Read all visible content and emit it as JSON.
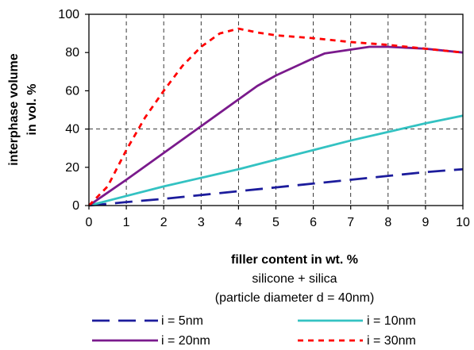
{
  "chart_data": {
    "type": "line",
    "xlabel": "filler content in wt. %",
    "ylabel_lines": [
      "interphase volume",
      "in vol. %"
    ],
    "caption_lines": [
      "silicone + silica",
      "(particle diameter d = 40nm)"
    ],
    "xlim": [
      0,
      10
    ],
    "ylim": [
      0,
      100
    ],
    "x_ticks": [
      0,
      1,
      2,
      3,
      4,
      5,
      6,
      7,
      8,
      9,
      10
    ],
    "y_ticks": [
      0,
      20,
      40,
      60,
      80,
      100
    ],
    "x_tick_labels": [
      "0",
      "1",
      "2",
      "3",
      "4",
      "5",
      "6",
      "7",
      "8",
      "9",
      "10"
    ],
    "y_tick_labels": [
      "0",
      "20",
      "40",
      "60",
      "80",
      "100"
    ],
    "grid": {
      "vertical": [
        1,
        2,
        3,
        4,
        5,
        6,
        7,
        8,
        9
      ],
      "horizontal": [
        40
      ]
    },
    "legend_position": "bottom",
    "series": [
      {
        "name": "i = 5nm",
        "color": "#1c1c9c",
        "dash": "dashed",
        "x": [
          0,
          1,
          2,
          3,
          4,
          5,
          6,
          7,
          8,
          9,
          10
        ],
        "y": [
          0,
          1.8,
          3.5,
          5.5,
          7.5,
          9.5,
          11.5,
          13.5,
          15.5,
          17.5,
          19
        ]
      },
      {
        "name": "i = 10nm",
        "color": "#33c2c2",
        "dash": "solid",
        "x": [
          0,
          1,
          2,
          3,
          4,
          5,
          6,
          7,
          8,
          9,
          10
        ],
        "y": [
          0,
          5,
          10,
          14.5,
          19,
          24,
          29,
          34,
          38.5,
          43,
          47
        ]
      },
      {
        "name": "i = 20nm",
        "color": "#7a1a8c",
        "dash": "solid",
        "x": [
          0,
          1,
          2,
          3,
          4,
          4.5,
          5,
          6,
          6.3,
          7.5,
          8,
          9,
          10
        ],
        "y": [
          0,
          13.5,
          27.5,
          41.5,
          55.5,
          62.5,
          68,
          77,
          79.5,
          83,
          83,
          82,
          80
        ]
      },
      {
        "name": "i = 30nm",
        "color": "#ff0000",
        "dash": "dotted",
        "x": [
          0,
          0.5,
          1,
          1.5,
          2,
          2.5,
          3,
          3.5,
          4,
          4.5,
          5,
          6,
          7,
          8,
          9,
          10
        ],
        "y": [
          0,
          10,
          29,
          46,
          60,
          73,
          83,
          90,
          92.5,
          90.5,
          89,
          87.5,
          85.5,
          84,
          82,
          80
        ]
      }
    ]
  }
}
